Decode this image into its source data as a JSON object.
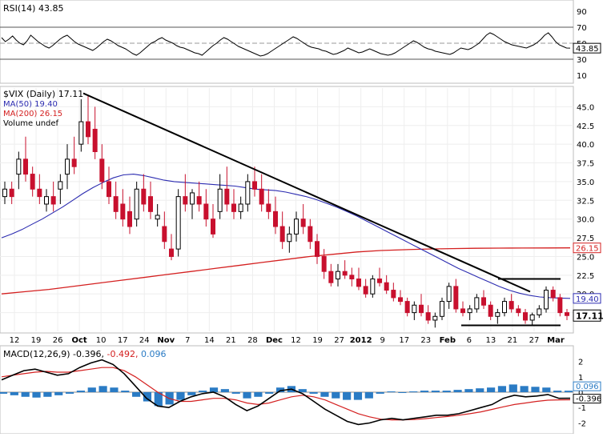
{
  "chart_data": [
    {
      "type": "line",
      "panel": "rsi",
      "title_text": "RSI(14) 43.85",
      "y_ticks": [
        90,
        70,
        50,
        30,
        10
      ],
      "ylim": [
        0,
        100
      ],
      "reference_lines": [
        70,
        30
      ],
      "last_value_label": "43.85",
      "series": [
        {
          "color": "#000000",
          "values": [
            57,
            52,
            55,
            59,
            54,
            50,
            48,
            53,
            60,
            56,
            52,
            49,
            46,
            44,
            47,
            51,
            55,
            58,
            60,
            56,
            52,
            49,
            47,
            45,
            43,
            41,
            44,
            48,
            52,
            55,
            53,
            50,
            47,
            45,
            43,
            40,
            37,
            35,
            38,
            42,
            46,
            50,
            52,
            55,
            57,
            54,
            52,
            50,
            47,
            45,
            44,
            42,
            40,
            38,
            37,
            35,
            39,
            43,
            47,
            50,
            54,
            57,
            55,
            52,
            49,
            46,
            44,
            42,
            40,
            38,
            36,
            34,
            35,
            37,
            40,
            43,
            46,
            49,
            52,
            55,
            58,
            56,
            53,
            50,
            47,
            45,
            44,
            43,
            41,
            40,
            38,
            36,
            37,
            39,
            41,
            44,
            42,
            40,
            38,
            39,
            41,
            43,
            41,
            39,
            37,
            36,
            35,
            36,
            38,
            41,
            44,
            47,
            50,
            53,
            51,
            48,
            45,
            43,
            42,
            40,
            39,
            38,
            37,
            36,
            38,
            41,
            44,
            43,
            42,
            44,
            47,
            50,
            55,
            60,
            63,
            61,
            58,
            55,
            52,
            50,
            48,
            47,
            46,
            45,
            44,
            46,
            48,
            51,
            55,
            60,
            63,
            58,
            52,
            48,
            46,
            44,
            43.85
          ]
        }
      ]
    },
    {
      "type": "candlestick",
      "panel": "price",
      "legend": [
        {
          "label": "$VIX (Daily) 17.11",
          "color": "#000000"
        },
        {
          "label": "MA(50) 19.40",
          "color": "#2b2bb0"
        },
        {
          "label": "MA(200) 26.15",
          "color": "#d42020"
        },
        {
          "label": "Volume undef",
          "color": "#000000"
        }
      ],
      "y_ticks": [
        45.0,
        42.5,
        40.0,
        37.5,
        35.0,
        32.5,
        30.0,
        27.5,
        25.0,
        22.5,
        20.0,
        17.5
      ],
      "ylim": [
        15.0,
        47.5
      ],
      "x_tick_labels": [
        "12",
        "19",
        "26",
        "Oct",
        "10",
        "17",
        "24",
        "Nov",
        "7",
        "14",
        "21",
        "28",
        "Dec",
        "12",
        "19",
        "27",
        "2012",
        "9",
        "17",
        "23",
        "Feb",
        "6",
        "13",
        "21",
        "27",
        "Mar"
      ],
      "last_labels": {
        "ma200": "26.15",
        "ma50": "19.40",
        "close": "17.11"
      },
      "trendline": {
        "start": [
          "Oct",
          46.8
        ],
        "end": [
          "Feb 27",
          20.3
        ]
      },
      "resistance": {
        "level": 22.0,
        "from": "Feb 21",
        "to": "Mar"
      },
      "support": {
        "level": 15.8,
        "from": "Feb 6",
        "to": "Mar"
      },
      "candles": [
        [
          33.0,
          35.0,
          32.0,
          34.0
        ],
        [
          34.0,
          35.0,
          32.0,
          33.0
        ],
        [
          36.0,
          39.0,
          34.0,
          38.0
        ],
        [
          38.0,
          41.0,
          35.0,
          36.0
        ],
        [
          36.0,
          37.0,
          33.0,
          34.0
        ],
        [
          34.0,
          36.0,
          32.0,
          33.0
        ],
        [
          32.0,
          34.0,
          31.0,
          33.0
        ],
        [
          33.0,
          35.0,
          31.0,
          32.0
        ],
        [
          34.0,
          36.0,
          32.0,
          35.0
        ],
        [
          36.0,
          40.0,
          34.0,
          38.0
        ],
        [
          38.0,
          41.0,
          36.0,
          37.0
        ],
        [
          40.0,
          46.0,
          39.0,
          43.0
        ],
        [
          43.0,
          46.5,
          40.0,
          41.0
        ],
        [
          42.0,
          45.0,
          38.0,
          39.0
        ],
        [
          38.0,
          40.0,
          34.0,
          35.0
        ],
        [
          35.0,
          37.0,
          32.0,
          33.0
        ],
        [
          33.0,
          35.0,
          30.0,
          31.0
        ],
        [
          32.0,
          34.0,
          29.0,
          30.0
        ],
        [
          31.0,
          33.0,
          28.0,
          29.0
        ],
        [
          30.0,
          35.0,
          29.0,
          34.0
        ],
        [
          34.0,
          36.0,
          31.0,
          32.0
        ],
        [
          33.0,
          35.0,
          30.0,
          31.0
        ],
        [
          30.0,
          32.0,
          29.0,
          30.5
        ],
        [
          29.0,
          31.0,
          26.0,
          27.0
        ],
        [
          26.0,
          28.0,
          24.5,
          25.0
        ],
        [
          26.0,
          34.0,
          25.0,
          33.0
        ],
        [
          33.0,
          36.0,
          31.0,
          32.0
        ],
        [
          32.0,
          34.0,
          30.0,
          33.5
        ],
        [
          33.0,
          35.0,
          31.0,
          32.0
        ],
        [
          32.0,
          34.0,
          29.0,
          30.0
        ],
        [
          30.0,
          32.0,
          27.5,
          28.0
        ],
        [
          31.0,
          36.0,
          30.0,
          34.0
        ],
        [
          34.0,
          37.0,
          31.0,
          32.0
        ],
        [
          32.0,
          34.0,
          30.0,
          31.0
        ],
        [
          31.0,
          33.0,
          30.0,
          32.0
        ],
        [
          32.0,
          36.0,
          31.0,
          35.0
        ],
        [
          35.0,
          37.0,
          33.0,
          34.0
        ],
        [
          34.0,
          36.0,
          31.0,
          32.0
        ],
        [
          32.0,
          34.0,
          30.0,
          31.0
        ],
        [
          31.0,
          33.0,
          28.0,
          29.0
        ],
        [
          29.0,
          31.0,
          26.0,
          27.0
        ],
        [
          27.0,
          29.0,
          25.5,
          28.0
        ],
        [
          28.0,
          31.0,
          27.0,
          30.0
        ],
        [
          30.0,
          32.0,
          28.0,
          29.0
        ],
        [
          29.0,
          30.0,
          26.0,
          27.0
        ],
        [
          27.0,
          28.0,
          24.0,
          25.0
        ],
        [
          25.0,
          26.0,
          22.0,
          23.0
        ],
        [
          23.0,
          24.0,
          21.0,
          21.5
        ],
        [
          22.0,
          24.0,
          21.0,
          23.0
        ],
        [
          23.0,
          24.5,
          22.0,
          22.5
        ],
        [
          22.5,
          23.5,
          21.0,
          22.0
        ],
        [
          22.0,
          23.5,
          20.5,
          21.0
        ],
        [
          21.0,
          22.0,
          19.5,
          20.0
        ],
        [
          20.0,
          22.5,
          19.5,
          22.0
        ],
        [
          22.0,
          23.5,
          21.0,
          21.5
        ],
        [
          21.5,
          22.5,
          20.0,
          20.5
        ],
        [
          20.5,
          21.5,
          19.0,
          19.5
        ],
        [
          19.5,
          20.5,
          18.5,
          19.0
        ],
        [
          19.0,
          19.5,
          17.0,
          17.5
        ],
        [
          17.5,
          19.0,
          16.5,
          18.5
        ],
        [
          18.5,
          20.0,
          17.0,
          17.5
        ],
        [
          17.5,
          18.5,
          16.0,
          16.5
        ],
        [
          16.5,
          17.5,
          15.5,
          17.0
        ],
        [
          17.0,
          19.5,
          16.5,
          19.0
        ],
        [
          19.0,
          21.5,
          18.0,
          21.0
        ],
        [
          21.0,
          22.0,
          17.5,
          18.0
        ],
        [
          18.0,
          19.0,
          17.0,
          17.5
        ],
        [
          17.5,
          18.5,
          16.5,
          18.0
        ],
        [
          18.0,
          20.0,
          17.5,
          19.5
        ],
        [
          19.5,
          20.5,
          18.0,
          18.5
        ],
        [
          18.5,
          19.0,
          16.5,
          17.0
        ],
        [
          17.0,
          18.0,
          16.0,
          17.5
        ],
        [
          17.5,
          19.5,
          17.0,
          19.0
        ],
        [
          19.0,
          20.0,
          17.5,
          18.0
        ],
        [
          18.0,
          18.5,
          17.0,
          17.5
        ],
        [
          17.5,
          18.0,
          16.0,
          16.5
        ],
        [
          16.5,
          17.5,
          15.8,
          17.2
        ],
        [
          17.2,
          18.5,
          16.8,
          18.0
        ],
        [
          18.0,
          21.0,
          17.5,
          20.5
        ],
        [
          20.5,
          21.0,
          19.0,
          19.5
        ],
        [
          19.5,
          20.0,
          17.0,
          17.5
        ],
        [
          17.5,
          18.0,
          16.5,
          17.11
        ]
      ],
      "ma50": [
        27.5,
        28.0,
        28.6,
        29.3,
        30.0,
        30.8,
        31.6,
        32.5,
        33.4,
        34.2,
        34.9,
        35.5,
        35.9,
        36.0,
        35.8,
        35.5,
        35.2,
        35.0,
        34.9,
        34.8,
        34.7,
        34.6,
        34.5,
        34.4,
        34.2,
        34.0,
        33.9,
        33.8,
        33.6,
        33.3,
        33.0,
        32.6,
        32.1,
        31.6,
        31.0,
        30.4,
        29.7,
        29.0,
        28.3,
        27.6,
        26.9,
        26.2,
        25.5,
        24.8,
        24.1,
        23.4,
        22.8,
        22.2,
        21.6,
        21.0,
        20.5,
        20.1,
        19.8,
        19.6,
        19.5,
        19.45,
        19.4
      ],
      "ma200": [
        20.0,
        20.3,
        20.6,
        21.0,
        21.4,
        21.8,
        22.2,
        22.6,
        23.0,
        23.4,
        23.8,
        24.2,
        24.6,
        25.0,
        25.3,
        25.6,
        25.8,
        25.9,
        26.0,
        26.05,
        26.1,
        26.12,
        26.13,
        26.14,
        26.15
      ]
    },
    {
      "type": "line",
      "panel": "macd",
      "title_text": "MACD(12,26,9) -0.396, -0.492, 0.096",
      "title_parts": [
        {
          "text": "MACD(12,26,9) -0.396,",
          "color": "#000000"
        },
        {
          "text": " -0.492,",
          "color": "#d42020"
        },
        {
          "text": " 0.096",
          "color": "#2a7bc4"
        }
      ],
      "y_ticks": [
        2,
        1,
        0,
        -1,
        -2
      ],
      "ylim": [
        -2.6,
        2.6
      ],
      "last_labels": {
        "histogram": "0.096",
        "macd": "-0.396"
      },
      "series": [
        {
          "name": "MACD",
          "color": "#000000",
          "values": [
            0.8,
            1.1,
            1.4,
            1.5,
            1.3,
            1.1,
            1.2,
            1.6,
            1.9,
            2.1,
            1.8,
            1.2,
            0.4,
            -0.4,
            -0.9,
            -1.0,
            -0.6,
            -0.3,
            -0.1,
            0.0,
            -0.3,
            -0.8,
            -1.2,
            -0.9,
            -0.4,
            0.1,
            0.2,
            -0.1,
            -0.6,
            -1.1,
            -1.5,
            -1.9,
            -2.1,
            -2.0,
            -1.8,
            -1.7,
            -1.8,
            -1.7,
            -1.6,
            -1.5,
            -1.5,
            -1.4,
            -1.2,
            -1.0,
            -0.8,
            -0.4,
            -0.2,
            -0.3,
            -0.25,
            -0.15,
            -0.4,
            -0.396
          ]
        },
        {
          "name": "Signal",
          "color": "#d42020",
          "values": [
            1.0,
            1.1,
            1.2,
            1.3,
            1.35,
            1.3,
            1.3,
            1.4,
            1.5,
            1.6,
            1.6,
            1.4,
            1.0,
            0.5,
            0.0,
            -0.4,
            -0.6,
            -0.6,
            -0.5,
            -0.4,
            -0.4,
            -0.5,
            -0.7,
            -0.8,
            -0.7,
            -0.5,
            -0.3,
            -0.2,
            -0.3,
            -0.5,
            -0.8,
            -1.1,
            -1.4,
            -1.6,
            -1.75,
            -1.8,
            -1.8,
            -1.78,
            -1.72,
            -1.65,
            -1.58,
            -1.5,
            -1.4,
            -1.28,
            -1.12,
            -0.95,
            -0.8,
            -0.7,
            -0.6,
            -0.52,
            -0.5,
            -0.492
          ]
        },
        {
          "name": "Histogram",
          "color": "#2a7bc4",
          "values": [
            -0.1,
            -0.2,
            -0.3,
            -0.35,
            -0.3,
            -0.2,
            -0.1,
            0.1,
            0.3,
            0.4,
            0.3,
            0.1,
            -0.3,
            -0.6,
            -0.9,
            -0.8,
            -0.5,
            -0.2,
            0.1,
            0.3,
            0.2,
            -0.1,
            -0.4,
            -0.3,
            -0.1,
            0.3,
            0.4,
            0.2,
            -0.1,
            -0.3,
            -0.4,
            -0.5,
            -0.5,
            -0.4,
            -0.1,
            0.05,
            -0.05,
            0.05,
            0.1,
            0.1,
            0.1,
            0.15,
            0.2,
            0.25,
            0.3,
            0.4,
            0.5,
            0.4,
            0.35,
            0.3,
            0.1,
            0.096
          ]
        }
      ]
    }
  ]
}
